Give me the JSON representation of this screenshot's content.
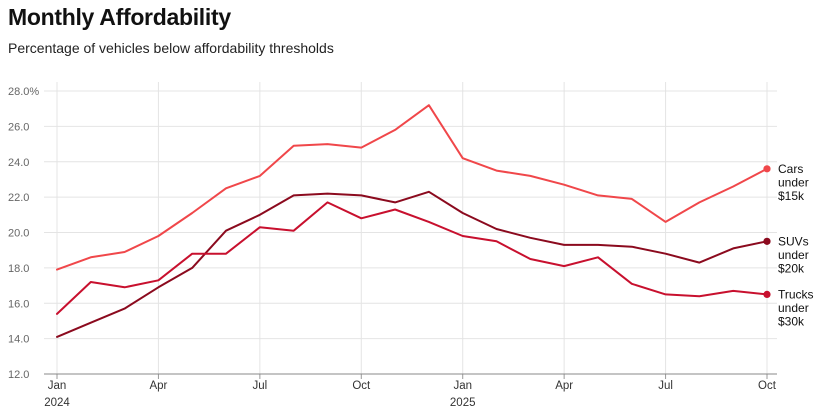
{
  "title": "Monthly Affordability",
  "subtitle": "Percentage of vehicles below affordability thresholds",
  "chart_data": {
    "type": "line",
    "title": "Monthly Affordability",
    "subtitle": "Percentage of vehicles below affordability thresholds",
    "xlabel": "",
    "ylabel": "",
    "ylim": [
      12,
      28
    ],
    "y_ticks": [
      {
        "value": 12,
        "label": "12.0"
      },
      {
        "value": 14,
        "label": "14.0"
      },
      {
        "value": 16,
        "label": "16.0"
      },
      {
        "value": 18,
        "label": "18.0"
      },
      {
        "value": 20,
        "label": "20.0"
      },
      {
        "value": 22,
        "label": "22.0"
      },
      {
        "value": 24,
        "label": "24.0"
      },
      {
        "value": 26,
        "label": "26.0"
      },
      {
        "value": 28,
        "label": "28.0%"
      }
    ],
    "x": [
      "2024-01",
      "2024-02",
      "2024-03",
      "2024-04",
      "2024-05",
      "2024-06",
      "2024-07",
      "2024-08",
      "2024-09",
      "2024-10",
      "2024-11",
      "2024-12",
      "2025-01",
      "2025-02",
      "2025-03",
      "2025-04",
      "2025-05",
      "2025-06",
      "2025-07",
      "2025-08",
      "2025-09",
      "2025-10"
    ],
    "x_ticks": [
      {
        "index": 0,
        "label": "Jan",
        "year": "2024"
      },
      {
        "index": 3,
        "label": "Apr"
      },
      {
        "index": 6,
        "label": "Jul"
      },
      {
        "index": 9,
        "label": "Oct"
      },
      {
        "index": 12,
        "label": "Jan",
        "year": "2025"
      },
      {
        "index": 15,
        "label": "Apr"
      },
      {
        "index": 18,
        "label": "Jul"
      },
      {
        "index": 21,
        "label": "Oct"
      }
    ],
    "series": [
      {
        "name": "Cars under $15k",
        "label_lines": [
          "Cars",
          "under",
          "$15k"
        ],
        "color": "#f0474a",
        "values": [
          17.9,
          18.6,
          18.9,
          19.8,
          21.1,
          22.5,
          23.2,
          24.9,
          25.0,
          24.8,
          25.8,
          27.2,
          24.2,
          23.5,
          23.2,
          22.7,
          22.1,
          21.9,
          20.6,
          21.7,
          22.6,
          23.6
        ]
      },
      {
        "name": "SUVs under $20k",
        "label_lines": [
          "SUVs",
          "under",
          "$20k"
        ],
        "color": "#8b0a1e",
        "values": [
          14.1,
          14.9,
          15.7,
          16.9,
          18.0,
          20.1,
          21.0,
          22.1,
          22.2,
          22.1,
          21.7,
          22.3,
          21.1,
          20.2,
          19.7,
          19.3,
          19.3,
          19.2,
          18.8,
          18.3,
          19.1,
          19.5
        ]
      },
      {
        "name": "Trucks under $30k",
        "label_lines": [
          "Trucks",
          "under",
          "$30k"
        ],
        "color": "#c8102e",
        "values": [
          15.4,
          17.2,
          16.9,
          17.3,
          18.8,
          18.8,
          20.3,
          20.1,
          21.7,
          20.8,
          21.3,
          20.6,
          19.8,
          19.5,
          18.5,
          18.1,
          18.6,
          17.1,
          16.5,
          16.4,
          16.7,
          16.5
        ]
      }
    ]
  }
}
